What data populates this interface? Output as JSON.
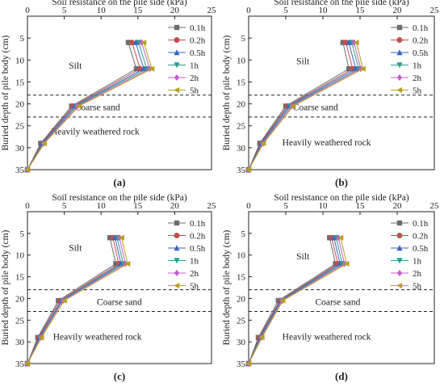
{
  "chart_data": [
    {
      "type": "line",
      "panel_label": "(a)",
      "xlabel": "Soil resistance on the pile side (kPa)",
      "ylabel": "Buried depth of pile body (cm)",
      "xlim": [
        0,
        25
      ],
      "ylim": [
        35,
        0
      ],
      "x_ticks": [
        0,
        5,
        10,
        15,
        20,
        25
      ],
      "y_ticks": [
        5,
        10,
        15,
        20,
        25,
        30,
        35
      ],
      "reference_lines": [
        18,
        23
      ],
      "layer_labels": [
        {
          "text": "Silt",
          "x": 6.5,
          "y": 12
        },
        {
          "text": "Coarse sand",
          "x": 9.5,
          "y": 21.5
        },
        {
          "text": "Heavily weathered rock",
          "x": 9.2,
          "y": 27
        }
      ],
      "series": [
        {
          "name": "0.1h",
          "values": [
            [
              13.7,
              6
            ],
            [
              14.8,
              12
            ],
            [
              6.0,
              20.5
            ],
            [
              1.8,
              29
            ],
            [
              0,
              35
            ]
          ]
        },
        {
          "name": "0.2h",
          "values": [
            [
              14.2,
              6
            ],
            [
              15.3,
              12
            ],
            [
              6.2,
              20.5
            ],
            [
              1.9,
              29
            ],
            [
              0,
              35
            ]
          ]
        },
        {
          "name": "0.5h",
          "values": [
            [
              14.7,
              6
            ],
            [
              15.8,
              12
            ],
            [
              6.4,
              20.5
            ],
            [
              2.0,
              29
            ],
            [
              0,
              35
            ]
          ]
        },
        {
          "name": "1h",
          "values": [
            [
              15.1,
              6
            ],
            [
              16.2,
              12
            ],
            [
              6.6,
              20.5
            ],
            [
              2.1,
              29
            ],
            [
              0,
              35
            ]
          ]
        },
        {
          "name": "2h",
          "values": [
            [
              15.5,
              6
            ],
            [
              16.6,
              12
            ],
            [
              6.8,
              20.5
            ],
            [
              2.2,
              29
            ],
            [
              0,
              35
            ]
          ]
        },
        {
          "name": "5h",
          "values": [
            [
              15.8,
              6
            ],
            [
              16.9,
              12
            ],
            [
              7.0,
              20.5
            ],
            [
              2.3,
              29
            ],
            [
              0,
              35
            ]
          ]
        }
      ]
    },
    {
      "type": "line",
      "panel_label": "(b)",
      "xlabel": "Soil resistance on the pile side (kPa)",
      "ylabel": "Buried depth of pile body (cm)",
      "xlim": [
        0,
        25
      ],
      "ylim": [
        35,
        0
      ],
      "x_ticks": [
        0,
        5,
        10,
        15,
        20,
        25
      ],
      "y_ticks": [
        5,
        10,
        15,
        20,
        25,
        30,
        35
      ],
      "reference_lines": [
        18,
        23
      ],
      "layer_labels": [
        {
          "text": "Silt",
          "x": 7.3,
          "y": 11
        },
        {
          "text": "Coarse sand",
          "x": 9.0,
          "y": 21.5
        },
        {
          "text": "Heavily weathered rock",
          "x": 10.5,
          "y": 29.5
        }
      ],
      "series": [
        {
          "name": "0.1h",
          "values": [
            [
              12.7,
              6
            ],
            [
              13.5,
              12
            ],
            [
              5.0,
              20.5
            ],
            [
              1.5,
              29
            ],
            [
              0,
              35
            ]
          ]
        },
        {
          "name": "0.2h",
          "values": [
            [
              13.1,
              6
            ],
            [
              14.0,
              12
            ],
            [
              5.2,
              20.5
            ],
            [
              1.6,
              29
            ],
            [
              0,
              35
            ]
          ]
        },
        {
          "name": "0.5h",
          "values": [
            [
              13.5,
              6
            ],
            [
              14.4,
              12
            ],
            [
              5.4,
              20.5
            ],
            [
              1.7,
              29
            ],
            [
              0,
              35
            ]
          ]
        },
        {
          "name": "1h",
          "values": [
            [
              13.9,
              6
            ],
            [
              14.8,
              12
            ],
            [
              5.6,
              20.5
            ],
            [
              1.8,
              29
            ],
            [
              0,
              35
            ]
          ]
        },
        {
          "name": "2h",
          "values": [
            [
              14.2,
              6
            ],
            [
              15.1,
              12
            ],
            [
              5.8,
              20.5
            ],
            [
              1.9,
              29
            ],
            [
              0,
              35
            ]
          ]
        },
        {
          "name": "5h",
          "values": [
            [
              14.5,
              6
            ],
            [
              15.4,
              12
            ],
            [
              6.0,
              20.5
            ],
            [
              2.0,
              29
            ],
            [
              0,
              35
            ]
          ]
        }
      ]
    },
    {
      "type": "line",
      "panel_label": "(c)",
      "xlabel": "Soil resistance on the pile side (kPa)",
      "ylabel": "Buried depth of pile body (cm)",
      "xlim": [
        0,
        25
      ],
      "ylim": [
        35,
        0
      ],
      "x_ticks": [
        0,
        5,
        10,
        15,
        20,
        25
      ],
      "y_ticks": [
        5,
        10,
        15,
        20,
        25,
        30,
        35
      ],
      "reference_lines": [
        18,
        23
      ],
      "layer_labels": [
        {
          "text": "Silt",
          "x": 6.5,
          "y": 9
        },
        {
          "text": "Coarse sand",
          "x": 12.5,
          "y": 21.5
        },
        {
          "text": "Heavily weathered rock",
          "x": 9.5,
          "y": 29.5
        }
      ],
      "series": [
        {
          "name": "0.1h",
          "values": [
            [
              11.2,
              6
            ],
            [
              12.0,
              12
            ],
            [
              4.2,
              20.5
            ],
            [
              1.4,
              29
            ],
            [
              0,
              35
            ]
          ]
        },
        {
          "name": "0.2h",
          "values": [
            [
              11.6,
              6
            ],
            [
              12.4,
              12
            ],
            [
              4.4,
              20.5
            ],
            [
              1.5,
              29
            ],
            [
              0,
              35
            ]
          ]
        },
        {
          "name": "0.5h",
          "values": [
            [
              11.9,
              6
            ],
            [
              12.7,
              12
            ],
            [
              4.6,
              20.5
            ],
            [
              1.6,
              29
            ],
            [
              0,
              35
            ]
          ]
        },
        {
          "name": "1h",
          "values": [
            [
              12.2,
              6
            ],
            [
              13.0,
              12
            ],
            [
              4.7,
              20.5
            ],
            [
              1.7,
              29
            ],
            [
              0,
              35
            ]
          ]
        },
        {
          "name": "2h",
          "values": [
            [
              12.5,
              6
            ],
            [
              13.3,
              12
            ],
            [
              4.8,
              20.5
            ],
            [
              1.8,
              29
            ],
            [
              0,
              35
            ]
          ]
        },
        {
          "name": "5h",
          "values": [
            [
              12.8,
              6
            ],
            [
              13.6,
              12
            ],
            [
              5.0,
              20.5
            ],
            [
              1.9,
              29
            ],
            [
              0,
              35
            ]
          ]
        }
      ]
    },
    {
      "type": "line",
      "panel_label": "(d)",
      "xlabel": "Soil resistance on the pile side (kPa)",
      "ylabel": "Buried depth of pile body (cm)",
      "xlim": [
        0,
        25
      ],
      "ylim": [
        35,
        0
      ],
      "x_ticks": [
        0,
        5,
        10,
        15,
        20,
        25
      ],
      "y_ticks": [
        5,
        10,
        15,
        20,
        25,
        30,
        35
      ],
      "reference_lines": [
        18,
        23
      ],
      "layer_labels": [
        {
          "text": "Silt",
          "x": 7.3,
          "y": 11
        },
        {
          "text": "Coarse sand",
          "x": 12.0,
          "y": 21.5
        },
        {
          "text": "Heavily weathered rock",
          "x": 10.5,
          "y": 29.5
        }
      ],
      "series": [
        {
          "name": "0.1h",
          "values": [
            [
              10.9,
              6
            ],
            [
              11.7,
              12
            ],
            [
              4.0,
              20.5
            ],
            [
              1.3,
              29
            ],
            [
              0,
              35
            ]
          ]
        },
        {
          "name": "0.2h",
          "values": [
            [
              11.2,
              6
            ],
            [
              12.0,
              12
            ],
            [
              4.2,
              20.5
            ],
            [
              1.4,
              29
            ],
            [
              0,
              35
            ]
          ]
        },
        {
          "name": "0.5h",
          "values": [
            [
              11.5,
              6
            ],
            [
              12.3,
              12
            ],
            [
              4.3,
              20.5
            ],
            [
              1.5,
              29
            ],
            [
              0,
              35
            ]
          ]
        },
        {
          "name": "1h",
          "values": [
            [
              11.8,
              6
            ],
            [
              12.6,
              12
            ],
            [
              4.4,
              20.5
            ],
            [
              1.6,
              29
            ],
            [
              0,
              35
            ]
          ]
        },
        {
          "name": "2h",
          "values": [
            [
              12.1,
              6
            ],
            [
              12.9,
              12
            ],
            [
              4.5,
              20.5
            ],
            [
              1.7,
              29
            ],
            [
              0,
              35
            ]
          ]
        },
        {
          "name": "5h",
          "values": [
            [
              12.4,
              6
            ],
            [
              13.2,
              12
            ],
            [
              4.6,
              20.5
            ],
            [
              1.8,
              29
            ],
            [
              0,
              35
            ]
          ]
        }
      ]
    }
  ],
  "series_styles": [
    {
      "color": "#6d6d6d",
      "marker": "square"
    },
    {
      "color": "#c0504d",
      "marker": "circle"
    },
    {
      "color": "#3b64c4",
      "marker": "triangle-up"
    },
    {
      "color": "#2e9a8c",
      "marker": "triangle-down"
    },
    {
      "color": "#c45ccc",
      "marker": "diamond"
    },
    {
      "color": "#b8a01c",
      "marker": "triangle-left"
    }
  ]
}
